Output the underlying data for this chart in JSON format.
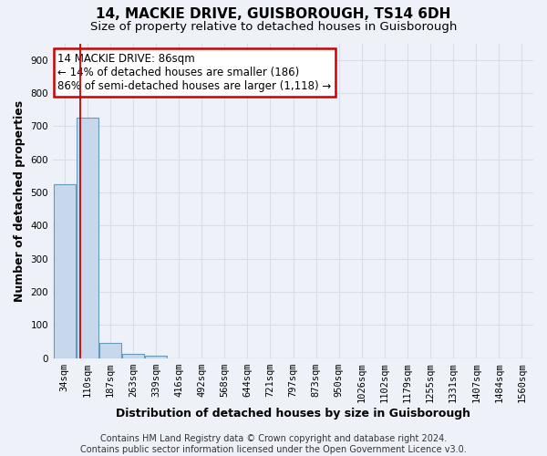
{
  "title": "14, MACKIE DRIVE, GUISBOROUGH, TS14 6DH",
  "subtitle": "Size of property relative to detached houses in Guisborough",
  "xlabel": "Distribution of detached houses by size in Guisborough",
  "ylabel": "Number of detached properties",
  "footer": "Contains HM Land Registry data © Crown copyright and database right 2024.\nContains public sector information licensed under the Open Government Licence v3.0.",
  "bins": [
    "34sqm",
    "110sqm",
    "187sqm",
    "263sqm",
    "339sqm",
    "416sqm",
    "492sqm",
    "568sqm",
    "644sqm",
    "721sqm",
    "797sqm",
    "873sqm",
    "950sqm",
    "1026sqm",
    "1102sqm",
    "1179sqm",
    "1255sqm",
    "1331sqm",
    "1407sqm",
    "1484sqm",
    "1560sqm"
  ],
  "bar_values": [
    525,
    725,
    45,
    12,
    8,
    0,
    0,
    0,
    0,
    0,
    0,
    0,
    0,
    0,
    0,
    0,
    0,
    0,
    0,
    0,
    0
  ],
  "bar_color": "#c8d8ec",
  "bar_edge_color": "#6699bb",
  "ylim": [
    0,
    950
  ],
  "yticks": [
    0,
    100,
    200,
    300,
    400,
    500,
    600,
    700,
    800,
    900
  ],
  "property_line_color": "#cc0000",
  "annotation_line1": "14 MACKIE DRIVE: 86sqm",
  "annotation_line2": "← 14% of detached houses are smaller (186)",
  "annotation_line3": "86% of semi-detached houses are larger (1,118) →",
  "annotation_box_color": "#cc0000",
  "background_color": "#eef2f8",
  "grid_color": "#d8dde8",
  "title_fontsize": 11,
  "subtitle_fontsize": 9.5,
  "xlabel_fontsize": 9,
  "ylabel_fontsize": 9,
  "tick_fontsize": 7.5,
  "annotation_fontsize": 8.5,
  "footer_fontsize": 7
}
